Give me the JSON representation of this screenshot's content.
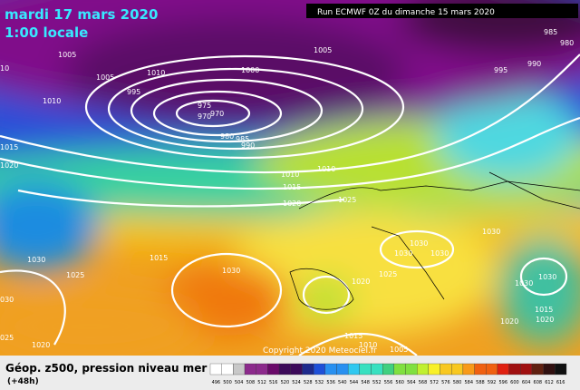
{
  "header": {
    "date": "mardi 17 mars 2020",
    "time": "1:00 locale",
    "run": "Run ECMWF 0Z du dimanche 15 mars 2020"
  },
  "copyright": "Copyright 2020 Meteociel.fr",
  "isobar_labels": [
    "985",
    "980",
    "1005",
    "1005",
    "1005",
    "1000",
    "1010",
    "990",
    "995",
    "10",
    "1010",
    "995",
    "975",
    "970",
    "970",
    "980",
    "985",
    "990",
    "1015",
    "1020",
    "1010",
    "1010",
    "1015",
    "1020",
    "1025",
    "1030",
    "1015",
    "1025",
    "1030",
    "1030",
    "1030",
    "1030",
    "1025",
    "1030",
    "1020",
    "1030",
    "1030",
    "1015",
    "1020",
    "1020",
    "030",
    "025",
    "1020",
    "1015",
    "1010",
    "1005"
  ],
  "legend": {
    "title": "Géop. z500, pression niveau mer",
    "step": "(+48h)",
    "levels": [
      496,
      500,
      504,
      508,
      512,
      516,
      520,
      524,
      528,
      532,
      536,
      540,
      544,
      548,
      552,
      556,
      560,
      564,
      568,
      572,
      576,
      580,
      584,
      588,
      592,
      596,
      600,
      604,
      608,
      612,
      616
    ]
  }
}
